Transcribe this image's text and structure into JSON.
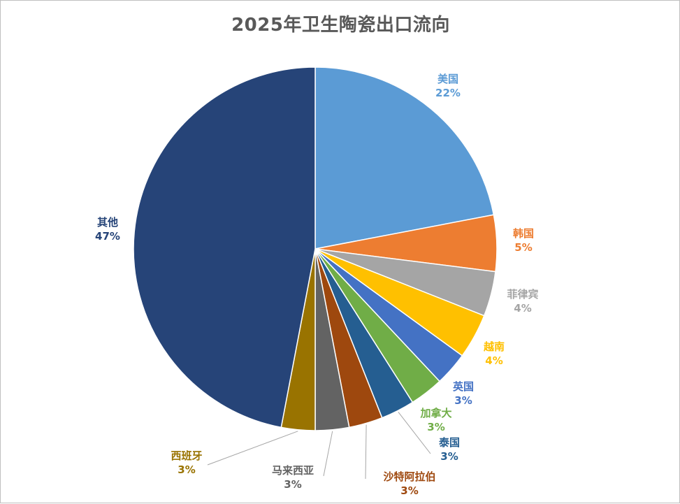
{
  "chart_data": {
    "type": "pie",
    "title": "2025年卫生陶瓷出口流向",
    "categories": [
      "美国",
      "韩国",
      "菲律宾",
      "越南",
      "英国",
      "加拿大",
      "泰国",
      "沙特阿拉伯",
      "马来西亚",
      "西班牙",
      "其他"
    ],
    "values": [
      22,
      5,
      4,
      4,
      3,
      3,
      3,
      3,
      3,
      3,
      47
    ],
    "value_labels": [
      "22%",
      "5%",
      "4%",
      "4%",
      "3%",
      "3%",
      "3%",
      "3%",
      "3%",
      "3%",
      "47%"
    ],
    "colors": [
      "#5B9BD5",
      "#ED7D31",
      "#A5A5A5",
      "#FFC000",
      "#4472C4",
      "#70AD47",
      "#255E91",
      "#9E480E",
      "#636363",
      "#997300",
      "#264478"
    ],
    "start_angle_deg": 0,
    "direction": "clockwise",
    "legend": "none"
  }
}
